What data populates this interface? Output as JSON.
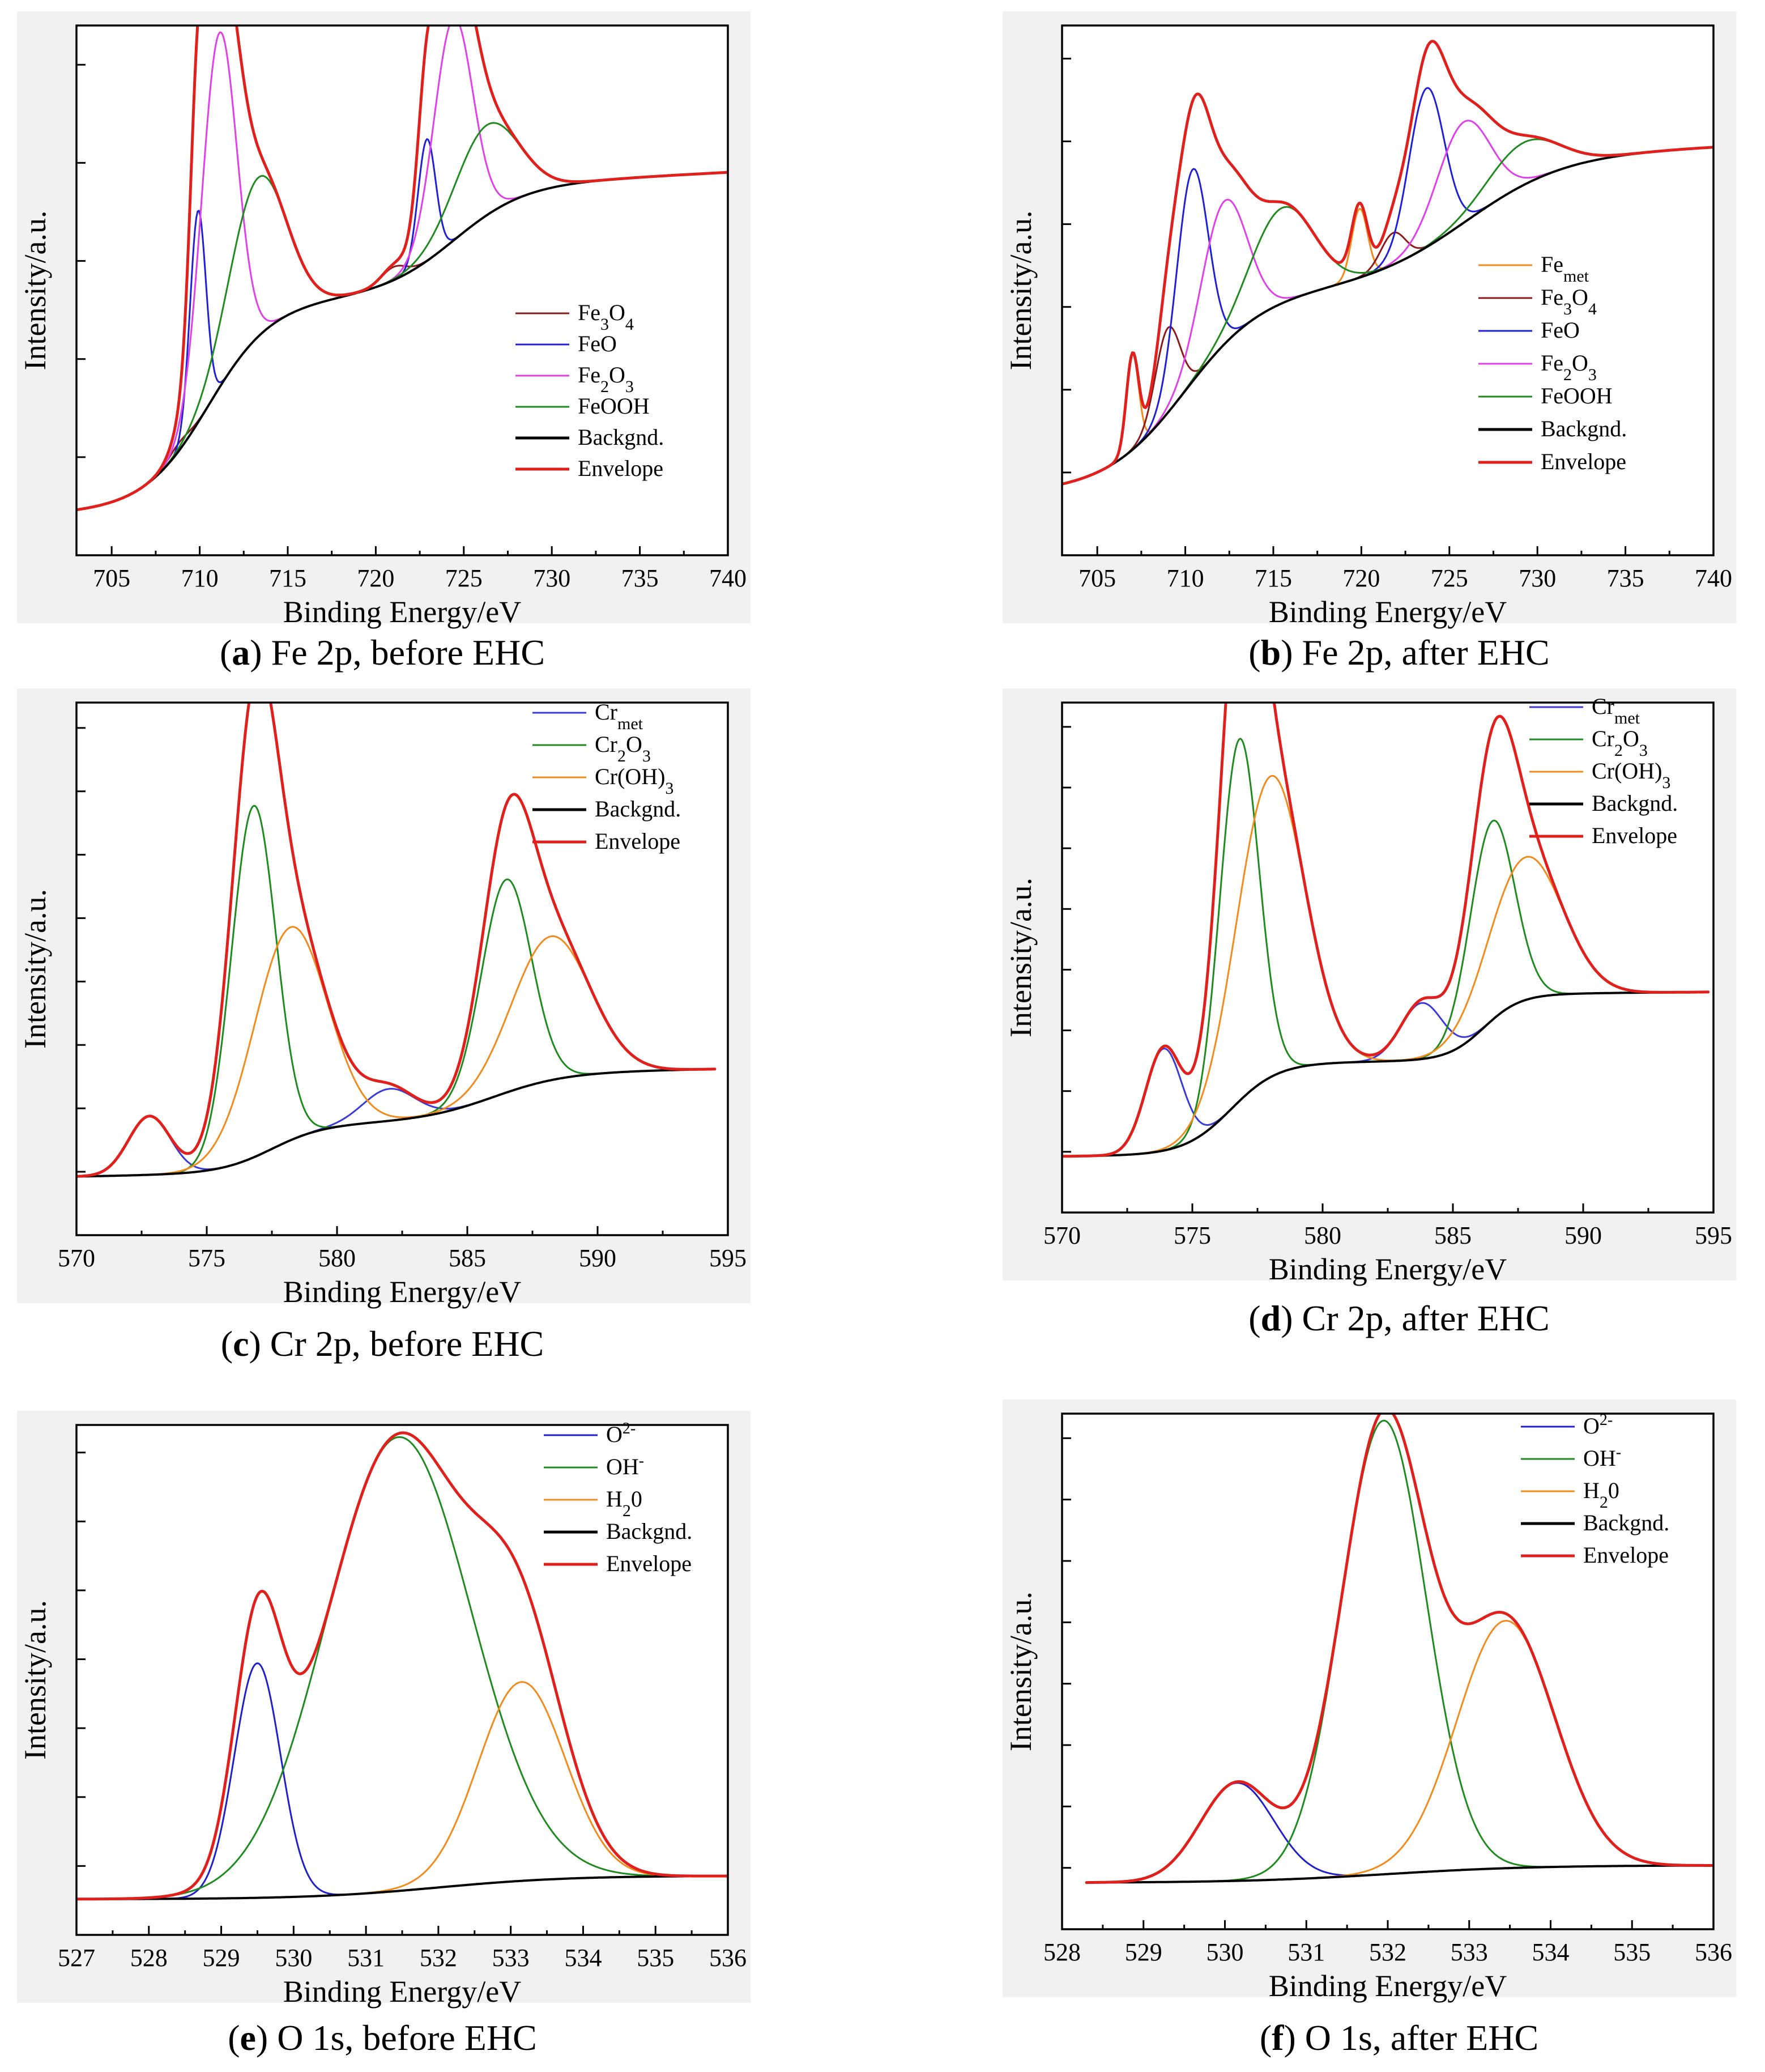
{
  "xlabel": "Binding Energy/eV",
  "ylabel": "Intensity/a.u.",
  "colors": {
    "Fe_met": "#f08c1e",
    "Fe3O4": "#8b1a1a",
    "FeO": "#1f1fd6",
    "Fe2O3": "#e040e8",
    "FeOOH": "#1f8a1f",
    "Backgnd": "#000000",
    "Envelope": "#e0201c",
    "Cr_met": "#3a3ad6",
    "Cr2O3": "#1f8a1f",
    "Cr(OH)3": "#f08c1e",
    "O2-": "#2020c8",
    "OH-": "#1f8a1f",
    "H2O": "#f08c1e"
  },
  "captions": [
    {
      "letter": "a",
      "text": " Fe 2p, before EHC"
    },
    {
      "letter": "b",
      "text": " Fe 2p, after EHC"
    },
    {
      "letter": "c",
      "text": " Cr 2p, before EHC"
    },
    {
      "letter": "d",
      "text": " Cr 2p, after EHC"
    },
    {
      "letter": "e",
      "text": " O 1s, before EHC"
    },
    {
      "letter": "f",
      "text": " O 1s, after EHC"
    }
  ],
  "chart_data": [
    {
      "id": "a",
      "type": "line",
      "xlabel": "Binding Energy/eV",
      "ylabel": "Intensity/a.u.",
      "xlim": [
        703,
        740
      ],
      "xticks": [
        705,
        710,
        715,
        720,
        725,
        730,
        735,
        740
      ],
      "ylim": [
        0,
        100
      ],
      "n_yticks": 5,
      "legend": [
        "Fe3O4",
        "FeO",
        "Fe2O3",
        "FeOOH",
        "Backgnd.",
        "Envelope"
      ],
      "legend_position": "right-middle",
      "background": {
        "type": "steps",
        "x0": 703,
        "y0": 8,
        "x1": 740,
        "y1": 72,
        "steps": [
          [
            710.5,
            38,
            1.8
          ],
          [
            724.5,
            20,
            2.0
          ]
        ],
        "slope": 0.17
      },
      "components": [
        {
          "name": "Fe3O4",
          "color": "#8b1a1a",
          "peaks": [
            [
              708.8,
              1.5,
              0.6
            ],
            [
              721.0,
              2.5,
              0.7
            ]
          ]
        },
        {
          "name": "FeO",
          "color": "#1f1fd6",
          "peaks": [
            [
              709.9,
              40,
              0.45
            ],
            [
              722.9,
              23,
              0.5
            ]
          ]
        },
        {
          "name": "Fe2O3",
          "color": "#e040e8",
          "peaks": [
            [
              711.1,
              67,
              1.0
            ],
            [
              724.4,
              42,
              1.1
            ]
          ]
        },
        {
          "name": "FeOOH",
          "color": "#1f8a1f",
          "peaks": [
            [
              713.3,
              30,
              1.6
            ],
            [
              726.3,
              17,
              1.8
            ]
          ]
        }
      ]
    },
    {
      "id": "b",
      "type": "line",
      "xlabel": "Binding Energy/eV",
      "ylabel": "Intensity/a.u.",
      "xlim": [
        703,
        740
      ],
      "xticks": [
        705,
        710,
        715,
        720,
        725,
        730,
        735,
        740
      ],
      "ylim": [
        0,
        100
      ],
      "n_yticks": 6,
      "legend": [
        "Femet",
        "Fe3O4",
        "FeO",
        "Fe2O3",
        "FeOOH",
        "Backgnd.",
        "Envelope"
      ],
      "legend_position": "right-middle",
      "background": {
        "type": "steps",
        "x0": 703,
        "y0": 12,
        "x1": 740,
        "y1": 79,
        "steps": [
          [
            710.0,
            36,
            2.2
          ],
          [
            726.0,
            24,
            2.8
          ]
        ],
        "slope": 0.14
      },
      "components": [
        {
          "name": "Femet",
          "color": "#f08c1e",
          "peaks": [
            [
              707.0,
              18,
              0.35
            ],
            [
              719.9,
              13,
              0.45
            ]
          ]
        },
        {
          "name": "Fe3O4",
          "color": "#8b1a1a",
          "peaks": [
            [
              709.0,
              16,
              0.7
            ],
            [
              721.8,
              6,
              0.7
            ]
          ]
        },
        {
          "name": "FeO",
          "color": "#1f1fd6",
          "peaks": [
            [
              710.4,
              40,
              0.9
            ],
            [
              723.7,
              30,
              1.0
            ]
          ]
        },
        {
          "name": "Fe2O3",
          "color": "#e040e8",
          "peaks": [
            [
              712.2,
              27,
              1.3
            ],
            [
              725.8,
              19,
              1.5
            ]
          ]
        },
        {
          "name": "FeOOH",
          "color": "#1f8a1f",
          "peaks": [
            [
              715.5,
              18,
              1.8
            ],
            [
              729.2,
              8,
              2.0
            ]
          ]
        }
      ]
    },
    {
      "id": "c",
      "type": "line",
      "xlabel": "Binding Energy/eV",
      "ylabel": "Intensity/a.u.",
      "xlim": [
        570,
        595
      ],
      "xticks": [
        570,
        575,
        580,
        585,
        590,
        595
      ],
      "ylim": [
        0,
        100
      ],
      "n_yticks": 8,
      "legend": [
        "Crmet",
        "Cr2O3",
        "Cr(OH)3",
        "Backgnd.",
        "Envelope"
      ],
      "legend_position": "top-right",
      "background": {
        "type": "steps",
        "x0": 570,
        "y0": 11,
        "x1": 594.5,
        "y1": 38,
        "steps": [
          [
            577.5,
            9,
            1.0
          ],
          [
            586.0,
            9,
            1.4
          ]
        ],
        "slope": 0.09
      },
      "components": [
        {
          "name": "Crmet",
          "color": "#3a3ad6",
          "peaks": [
            [
              572.8,
              11,
              0.8
            ],
            [
              582.0,
              6,
              1.0
            ]
          ]
        },
        {
          "name": "Cr2O3",
          "color": "#1f8a1f",
          "peaks": [
            [
              576.8,
              66,
              0.85
            ],
            [
              586.5,
              40,
              0.95
            ]
          ]
        },
        {
          "name": "Cr(OH)3",
          "color": "#f08c1e",
          "peaks": [
            [
              578.2,
              40,
              1.4
            ],
            [
              588.2,
              27,
              1.5
            ]
          ]
        }
      ]
    },
    {
      "id": "d",
      "type": "line",
      "xlabel": "Binding Energy/eV",
      "ylabel": "Intensity/a.u.",
      "xlim": [
        570,
        595
      ],
      "xticks": [
        570,
        575,
        580,
        585,
        590,
        595
      ],
      "ylim": [
        0,
        100
      ],
      "n_yticks": 8,
      "legend": [
        "Crmet",
        "Cr2O3",
        "Cr(OH)3",
        "Backgnd.",
        "Envelope"
      ],
      "legend_position": "top-right",
      "background": {
        "type": "steps",
        "x0": 570,
        "y0": 11,
        "x1": 594.8,
        "y1": 44,
        "steps": [
          [
            576.5,
            18,
            0.9
          ],
          [
            586.2,
            13,
            0.7
          ]
        ],
        "slope": 0.05
      },
      "components": [
        {
          "name": "Crmet",
          "color": "#3a3ad6",
          "peaks": [
            [
              573.9,
              20,
              0.7
            ],
            [
              583.8,
              11,
              0.8
            ]
          ]
        },
        {
          "name": "Cr2O3",
          "color": "#1f8a1f",
          "peaks": [
            [
              576.8,
              71,
              0.75
            ],
            [
              586.5,
              39,
              0.85
            ]
          ]
        },
        {
          "name": "Cr(OH)3",
          "color": "#f08c1e",
          "peaks": [
            [
              578.0,
              59,
              1.3
            ],
            [
              587.8,
              28,
              1.4
            ]
          ]
        }
      ]
    },
    {
      "id": "e",
      "type": "line",
      "xlabel": "Binding Energy/eV",
      "ylabel": "Intensity/a.u.",
      "xlim": [
        527,
        536
      ],
      "xticks": [
        527,
        528,
        529,
        530,
        531,
        532,
        533,
        534,
        535,
        536
      ],
      "ylim": [
        0,
        100
      ],
      "n_yticks": 7,
      "legend": [
        "O2-",
        "OH-",
        "H20",
        "Backgnd.",
        "Envelope"
      ],
      "legend_position": "top-right",
      "background": {
        "type": "steps",
        "x0": 527,
        "y0": 7,
        "x1": 536,
        "y1": 12,
        "steps": [
          [
            532.0,
            4.6,
            0.9
          ]
        ],
        "slope": 0.0
      },
      "components": [
        {
          "name": "O2-",
          "color": "#2020c8",
          "peaks": [
            [
              529.5,
              46,
              0.32
            ]
          ]
        },
        {
          "name": "OH-",
          "color": "#1f8a1f",
          "peaks": [
            [
              531.45,
              89,
              1.0
            ]
          ]
        },
        {
          "name": "H20",
          "color": "#f08c1e",
          "peaks": [
            [
              533.15,
              39,
              0.6
            ]
          ]
        }
      ]
    },
    {
      "id": "f",
      "type": "line",
      "xlabel": "Binding Energy/eV",
      "ylabel": "Intensity/a.u.",
      "xlim": [
        528,
        536
      ],
      "xticks": [
        528,
        529,
        530,
        531,
        532,
        533,
        534,
        535,
        536
      ],
      "ylim": [
        0,
        100
      ],
      "n_yticks": 8,
      "legend": [
        "O2-",
        "OH-",
        "H20",
        "Backgnd.",
        "Envelope"
      ],
      "legend_position": "top-right",
      "background": {
        "type": "steps",
        "x0": 528.3,
        "y0": 9,
        "x1": 536,
        "y1": 13,
        "steps": [
          [
            532.0,
            3.4,
            0.9
          ]
        ],
        "slope": 0.0
      },
      "components": [
        {
          "name": "O2-",
          "color": "#2020c8",
          "peaks": [
            [
              530.15,
              19,
              0.45
            ]
          ]
        },
        {
          "name": "OH-",
          "color": "#1f8a1f",
          "peaks": [
            [
              531.95,
              88,
              0.52
            ]
          ]
        },
        {
          "name": "H20",
          "color": "#f08c1e",
          "peaks": [
            [
              533.45,
              48,
              0.6
            ]
          ]
        }
      ]
    }
  ]
}
